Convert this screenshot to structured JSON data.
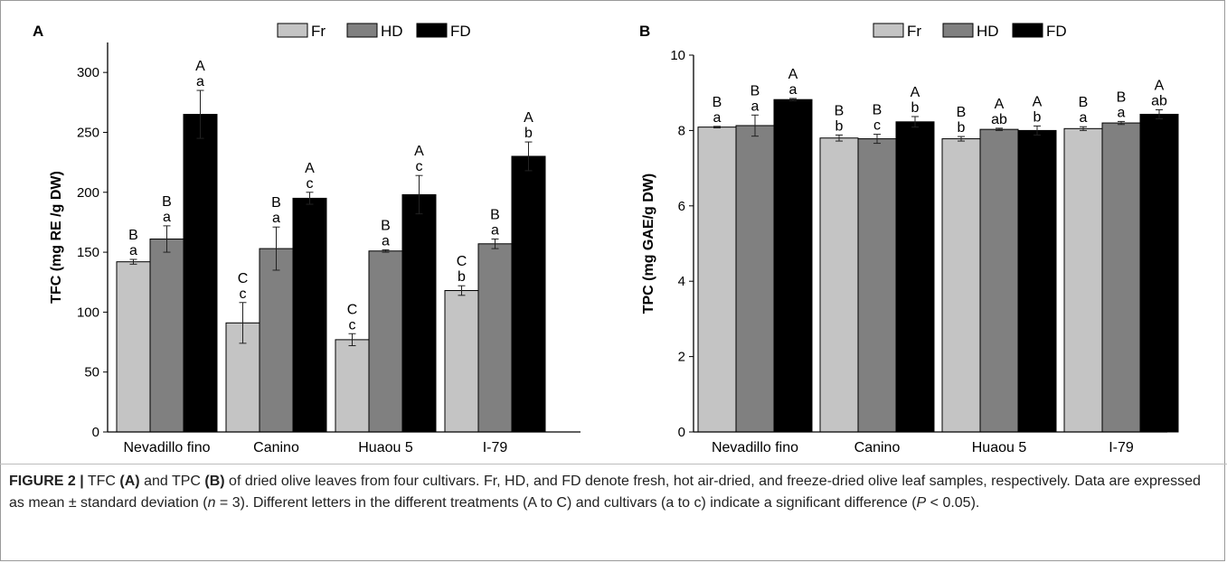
{
  "legend": [
    "Fr",
    "HD",
    "FD"
  ],
  "colors": {
    "Fr": "#c4c4c4",
    "HD": "#808080",
    "FD": "#000000"
  },
  "chart_data": [
    {
      "type": "bar",
      "panel_label": "A",
      "categories": [
        "Nevadillo fino",
        "Canino",
        "Huaou 5",
        "I-79"
      ],
      "ylabel": "TFC (mg RE /g DW)",
      "ylim": [
        0,
        325
      ],
      "yticks": [
        0,
        50,
        100,
        150,
        200,
        250,
        300
      ],
      "legend_position": "top-center",
      "series": [
        {
          "name": "Fr",
          "values": [
            142,
            91,
            77,
            118
          ],
          "errors": [
            2,
            17,
            5,
            4
          ],
          "labels_upper": [
            "B",
            "C",
            "C",
            "C"
          ],
          "labels_lower": [
            "a",
            "c",
            "c",
            "b"
          ]
        },
        {
          "name": "HD",
          "values": [
            161,
            153,
            151,
            157
          ],
          "errors": [
            11,
            18,
            1,
            4
          ],
          "labels_upper": [
            "B",
            "B",
            "B",
            "B"
          ],
          "labels_lower": [
            "a",
            "a",
            "a",
            "a"
          ]
        },
        {
          "name": "FD",
          "values": [
            265,
            195,
            198,
            230
          ],
          "errors": [
            20,
            5,
            16,
            12
          ],
          "labels_upper": [
            "A",
            "A",
            "A",
            "A"
          ],
          "labels_lower": [
            "a",
            "c",
            "c",
            "b"
          ]
        }
      ]
    },
    {
      "type": "bar",
      "panel_label": "B",
      "categories": [
        "Nevadillo fino",
        "Canino",
        "Huaou 5",
        "I-79"
      ],
      "ylabel": "TPC (mg GAE/g DW)",
      "ylim": [
        0,
        10
      ],
      "yticks": [
        0,
        2,
        4,
        6,
        8,
        10
      ],
      "legend_position": "top-center",
      "series": [
        {
          "name": "Fr",
          "values": [
            8.09,
            7.8,
            7.78,
            8.05
          ],
          "errors": [
            0.02,
            0.08,
            0.06,
            0.05
          ],
          "labels_upper": [
            "B",
            "B",
            "B",
            "B"
          ],
          "labels_lower": [
            "a",
            "b",
            "b",
            "a"
          ]
        },
        {
          "name": "HD",
          "values": [
            8.13,
            7.78,
            8.03,
            8.2
          ],
          "errors": [
            0.28,
            0.12,
            0.03,
            0.04
          ],
          "labels_upper": [
            "B",
            "B",
            "A",
            "B"
          ],
          "labels_lower": [
            "a",
            "c",
            "ab",
            "a"
          ]
        },
        {
          "name": "FD",
          "values": [
            8.82,
            8.23,
            8.0,
            8.43
          ],
          "errors": [
            0.03,
            0.14,
            0.12,
            0.12
          ],
          "labels_upper": [
            "A",
            "A",
            "A",
            "A"
          ],
          "labels_lower": [
            "a",
            "b",
            "b",
            "ab"
          ]
        }
      ]
    }
  ],
  "caption": {
    "figure_label": "FIGURE 2 |",
    "s1": " TFC ",
    "b1": "(A)",
    "s2": " and TPC ",
    "b2": "(B)",
    "s3": " of dried olive leaves from four cultivars. Fr, HD, and FD denote fresh, hot air-dried, and freeze-dried olive leaf samples, respectively. Data are expressed as mean ± standard deviation (",
    "n_var": "n",
    "s4": " = 3). Different letters in the different treatments (A to C) and cultivars (a to c) indicate a significant difference (",
    "p_var": "P",
    "s5": " < 0.05)."
  }
}
